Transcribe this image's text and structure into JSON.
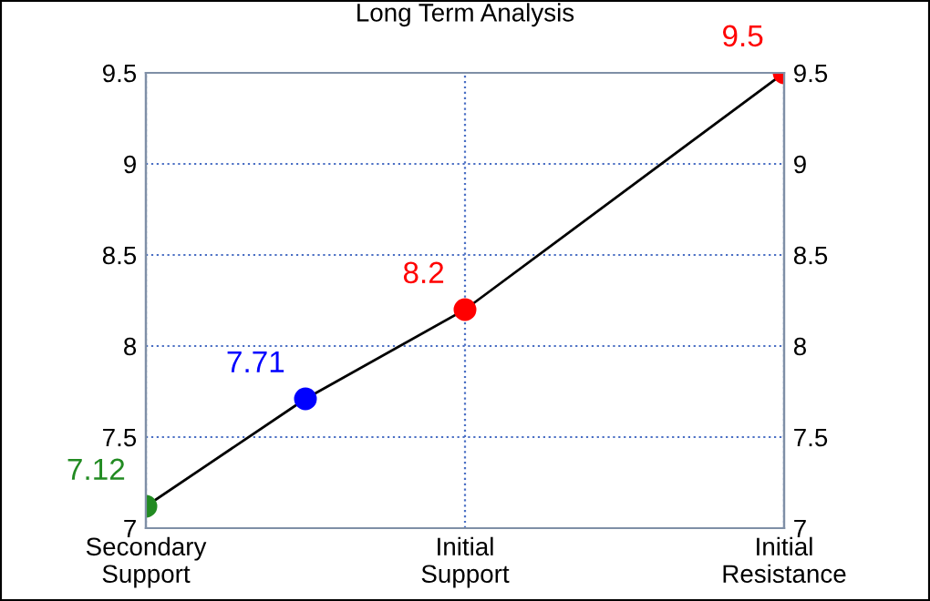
{
  "chart_data": {
    "type": "line",
    "title": "Long Term Analysis",
    "categories": [
      "Secondary\nSupport",
      null,
      "Initial\nSupport",
      null,
      "Initial\nResistance"
    ],
    "series": [
      {
        "color": "#000000",
        "colors": [
          "#228b22",
          "#0000ff",
          "#ff0000",
          null,
          "#ff0000"
        ],
        "values": [
          7.12,
          7.71,
          8.2,
          null,
          9.5
        ]
      }
    ],
    "ylim": [
      7,
      9.5
    ],
    "yticks": [
      7,
      7.5,
      8,
      8.5,
      9,
      9.5
    ],
    "y2lim": [
      7,
      9.5
    ],
    "y2ticks": [
      7,
      7.5,
      8,
      8.5,
      9,
      9.5
    ],
    "grid": true,
    "marker": "circle",
    "line_style": "solid",
    "data_labels": true
  }
}
